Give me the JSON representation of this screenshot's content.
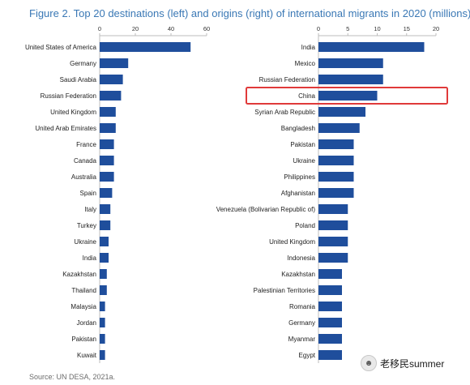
{
  "title": "Figure 2. Top 20 destinations (left) and origins (right) of international migrants in 2020 (millions)",
  "source": "Source: UN DESA, 2021a.",
  "watermark": "老移民summer",
  "colors": {
    "bar": "#1f4e9c",
    "title": "#3a78b5",
    "highlight": "#e03a3a"
  },
  "chart_data": [
    {
      "type": "bar",
      "orientation": "horizontal",
      "categories": [
        "United States of America",
        "Germany",
        "Saudi Arabia",
        "Russian Federation",
        "United Kingdom",
        "United Arab Emirates",
        "France",
        "Canada",
        "Australia",
        "Spain",
        "Italy",
        "Turkey",
        "Ukraine",
        "India",
        "Kazakhstan",
        "Thailand",
        "Malaysia",
        "Jordan",
        "Pakistan",
        "Kuwait"
      ],
      "values": [
        51,
        16,
        13,
        12,
        9,
        9,
        8,
        8,
        8,
        7,
        6,
        6,
        5,
        5,
        4,
        4,
        3,
        3,
        3,
        3
      ],
      "xlim": [
        0,
        60
      ],
      "xticks": [
        0,
        20,
        40,
        60
      ],
      "unit": "millions"
    },
    {
      "type": "bar",
      "orientation": "horizontal",
      "categories": [
        "India",
        "Mexico",
        "Russian Federation",
        "China",
        "Syrian Arab Republic",
        "Bangladesh",
        "Pakistan",
        "Ukraine",
        "Philippines",
        "Afghanistan",
        "Venezuela (Bolivarian Republic of)",
        "Poland",
        "United Kingdom",
        "Indonesia",
        "Kazakhstan",
        "Palestinian Territories",
        "Romania",
        "Germany",
        "Myanmar",
        "Egypt"
      ],
      "values": [
        18,
        11,
        11,
        10,
        8,
        7,
        6,
        6,
        6,
        6,
        5,
        5,
        5,
        5,
        4,
        4,
        4,
        4,
        4,
        4
      ],
      "xlim": [
        0,
        20
      ],
      "xticks": [
        0,
        5,
        10,
        15,
        20
      ],
      "highlight": "China",
      "unit": "millions"
    }
  ]
}
